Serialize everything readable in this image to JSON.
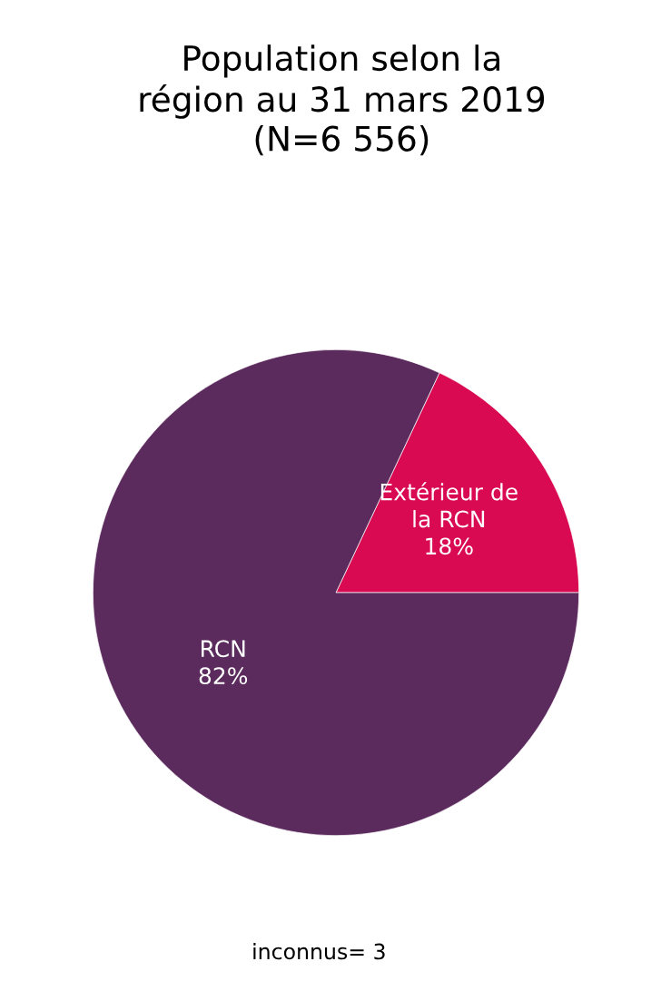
{
  "chart_data": {
    "type": "pie",
    "title": "Population selon la\nrégion au 31 mars 2019\n(N=6 556)",
    "categories": [
      "Extérieur de la RCN",
      "RCN"
    ],
    "values": [
      18,
      82
    ],
    "value_labels": [
      "18%",
      "82%"
    ],
    "colors": [
      "#d90a52",
      "#5c2b5d"
    ],
    "annotations": [
      "inconnus= 3"
    ]
  }
}
